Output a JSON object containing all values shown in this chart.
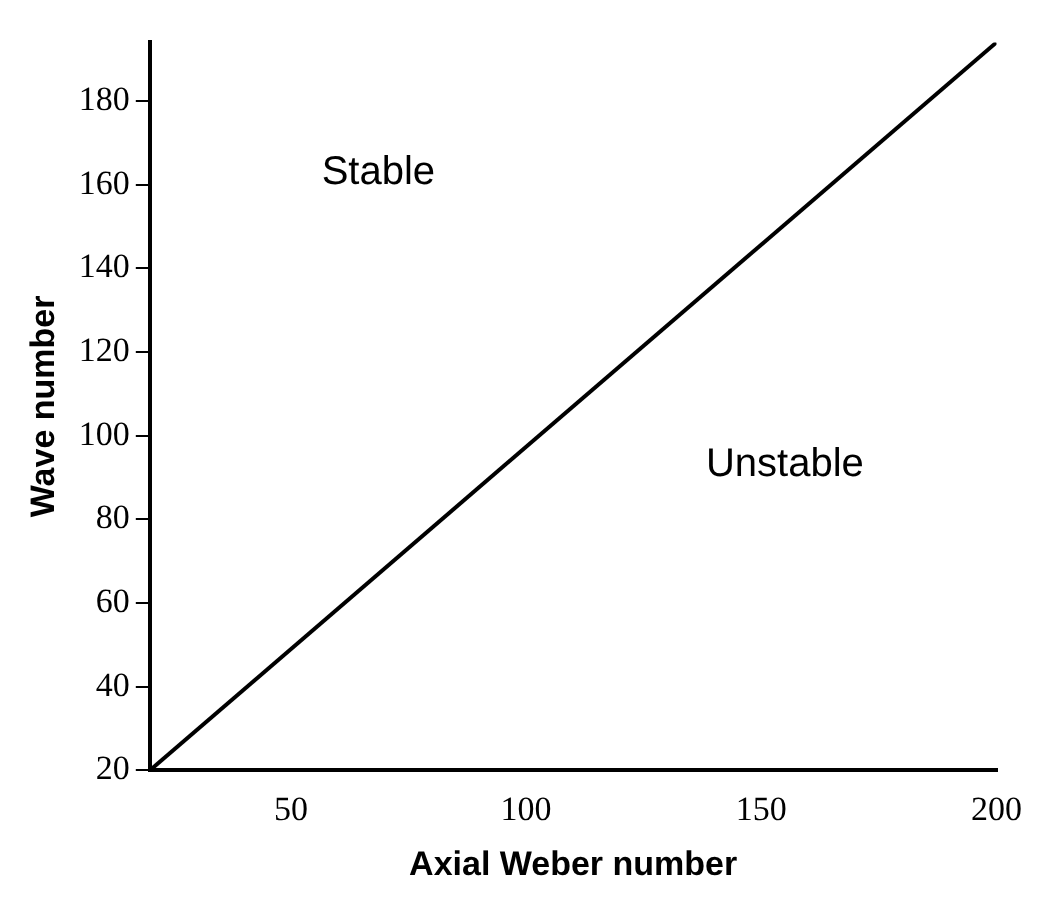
{
  "chart_data": {
    "type": "line",
    "xlabel": "Axial Weber number",
    "ylabel": "Wave number",
    "x": [
      20,
      200
    ],
    "series": [
      {
        "color": "#000000",
        "values": [
          20,
          194
        ]
      }
    ],
    "xlim": [
      20,
      200
    ],
    "xticks": [
      50,
      100,
      150,
      200
    ],
    "ylim": [
      20,
      194
    ],
    "yticks": [
      20,
      40,
      60,
      80,
      100,
      120,
      140,
      160,
      180
    ],
    "grid": false,
    "legend": false,
    "marker": "none",
    "line_style": "solid",
    "annotations": [
      "Stable",
      "Unstable"
    ]
  }
}
